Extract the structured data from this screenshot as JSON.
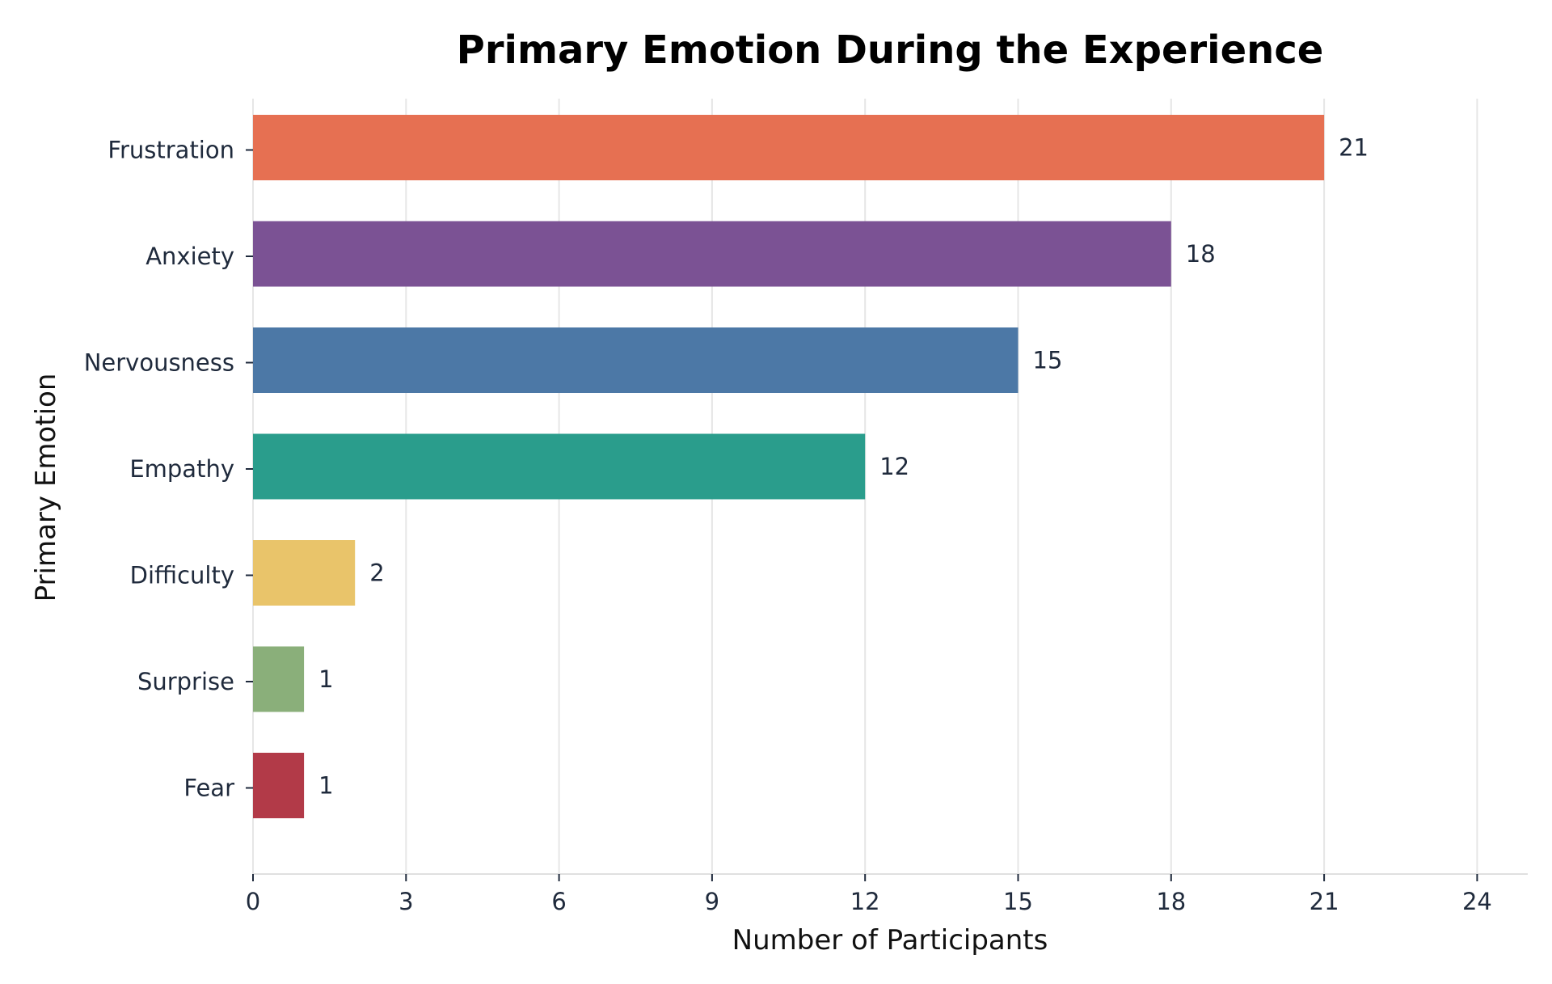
{
  "chart_data": {
    "type": "bar",
    "orientation": "horizontal",
    "title": "Primary Emotion During the Experience",
    "xlabel": "Number of Participants",
    "ylabel": "Primary Emotion",
    "categories": [
      "Frustration",
      "Anxiety",
      "Nervousness",
      "Empathy",
      "Difficulty",
      "Surprise",
      "Fear"
    ],
    "values": [
      21,
      18,
      15,
      12,
      2,
      1,
      1
    ],
    "colors": [
      "#e67052",
      "#7b5294",
      "#4c78a6",
      "#2a9d8c",
      "#e9c46a",
      "#8aaf7a",
      "#b23a48"
    ],
    "xlim": [
      0,
      25
    ],
    "xticks": [
      0,
      3,
      6,
      9,
      12,
      15,
      18,
      21,
      24
    ],
    "grid": true,
    "legend": "none"
  }
}
